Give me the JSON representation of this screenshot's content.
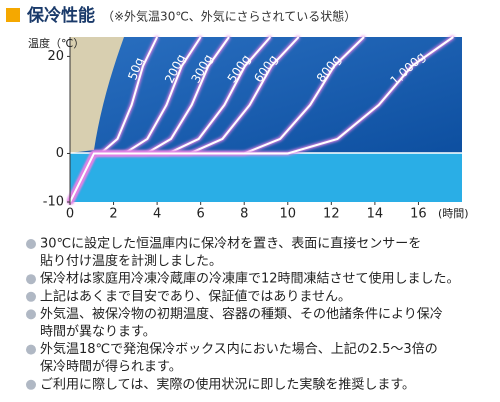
{
  "header": {
    "title": "保冷性能",
    "note": "（※外気温30℃、外気にさらされている状態）"
  },
  "chart_data": {
    "type": "line",
    "ylabel": "温度（℃）",
    "xlabel": "(時間)",
    "xlim": [
      0,
      18
    ],
    "ylim": [
      -10,
      24
    ],
    "xticks": [
      0,
      2,
      4,
      6,
      8,
      10,
      12,
      14,
      16
    ],
    "yticks": [
      -10,
      0,
      20
    ],
    "grid": false,
    "series": [
      {
        "name": "50g",
        "color": "#ffffff",
        "x": [
          0,
          1.1,
          1.4,
          2.18,
          2.83,
          3.35,
          4.0
        ],
        "values": [
          -10,
          0,
          0,
          3,
          10,
          18,
          24
        ]
      },
      {
        "name": "200g",
        "color": "#ffffff",
        "x": [
          0,
          1.1,
          2.5,
          3.55,
          4.43,
          5.13,
          6.0
        ],
        "values": [
          -10,
          0,
          0,
          3,
          10,
          18,
          24
        ]
      },
      {
        "name": "300g",
        "color": "#ffffff",
        "x": [
          0,
          1.1,
          3.5,
          4.64,
          5.59,
          6.35,
          7.3
        ],
        "values": [
          -10,
          0,
          0,
          3,
          10,
          18,
          24
        ]
      },
      {
        "name": "500g",
        "color": "#ffffff",
        "x": [
          0,
          1.1,
          4.5,
          5.91,
          7.09,
          8.03,
          9.2
        ],
        "values": [
          -10,
          0,
          0,
          3,
          10,
          18,
          24
        ]
      },
      {
        "name": "600g",
        "color": "#ffffff",
        "x": [
          0,
          1.1,
          5.5,
          7.0,
          8.25,
          9.25,
          10.5
        ],
        "values": [
          -10,
          0,
          0,
          3,
          10,
          18,
          24
        ]
      },
      {
        "name": "800g",
        "color": "#ffffff",
        "x": [
          0,
          1.1,
          8,
          9.65,
          11.03,
          12.13,
          13.5
        ],
        "values": [
          -10,
          0,
          0,
          3,
          10,
          18,
          24
        ]
      },
      {
        "name": "1,000g",
        "color": "#ffffff",
        "x": [
          0,
          1.1,
          10,
          12.28,
          14.18,
          15.7,
          17.6
        ],
        "values": [
          -10,
          0,
          0,
          3,
          10,
          18,
          24
        ]
      }
    ]
  },
  "notes": [
    [
      "30℃に設定した恒温庫内に保冷材を置き、表面に直接センサーを",
      "貼り付け温度を計測しました。"
    ],
    [
      "保冷材は家庭用冷凍冷蔵庫の冷凍庫で12時間凍結させて使用しました。"
    ],
    [
      "上記はあくまで目安であり、保証値ではありません。"
    ],
    [
      "外気温、被保冷物の初期温度、容器の種類、その他諸条件により保冷",
      "時間が異なります。"
    ],
    [
      "外気温18℃で発泡保冷ボックス内においた場合、上記の2.5～3倍の",
      "保冷時間が得られます。"
    ],
    [
      "ご利用に際しては、実際の使用状況に即した実験を推奨します。"
    ]
  ]
}
